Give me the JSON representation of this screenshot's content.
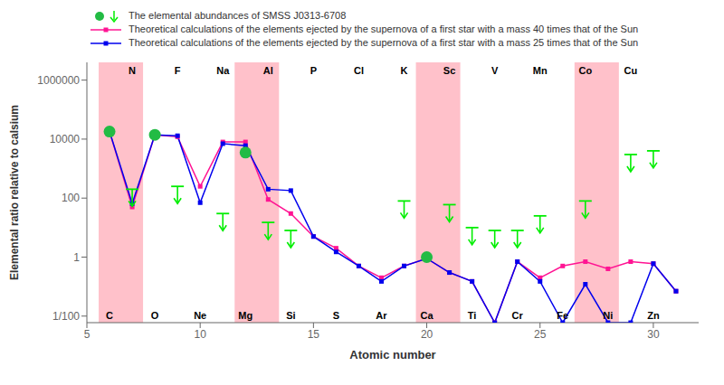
{
  "chart_data": {
    "type": "line",
    "xlabel": "Atomic number",
    "ylabel": "Elemental ratio relative to calsium",
    "log": "y",
    "xlim": [
      5,
      32
    ],
    "xticks": [
      5,
      10,
      15,
      20,
      25,
      30
    ],
    "ylim": [
      0.006,
      4000000
    ],
    "yticks": [
      {
        "value": 0.01,
        "label": "1/100"
      },
      1,
      100,
      10000,
      1000000
    ],
    "series": [
      {
        "name": "The elemental abundances of  SMSS J0313-6708",
        "type": "scatter",
        "marker": "circle",
        "color": "#22BB44",
        "x": [
          6,
          8,
          12,
          20
        ],
        "values": [
          18000,
          14000,
          3500,
          1.0
        ]
      },
      {
        "name": "Theoretical calculations of the elements ejected by the supernova of a first star with a mass 40 times that of the Sun",
        "type": "line",
        "marker": "square",
        "color": "#FF1493",
        "x": [
          6,
          7,
          8,
          9,
          10,
          11,
          12,
          13,
          14,
          15,
          16,
          17,
          18,
          19,
          20,
          21,
          22,
          23,
          24,
          25,
          26,
          27,
          28,
          29,
          30,
          31
        ],
        "values": [
          18000,
          50,
          14000,
          12000,
          250,
          8000,
          8000,
          90,
          30,
          5,
          2,
          0.5,
          0.2,
          0.5,
          0.9,
          0.3,
          0.15,
          0.006,
          0.7,
          0.2,
          0.5,
          0.7,
          0.4,
          0.7,
          0.6,
          0.07
        ]
      },
      {
        "name": "Theoretical calculations of the elements ejected by the supernova of a first star with a mass 25 times that of the Sun",
        "type": "line",
        "marker": "square",
        "color": "#0000EE",
        "x": [
          6,
          7,
          8,
          9,
          10,
          11,
          12,
          13,
          14,
          15,
          16,
          17,
          18,
          19,
          20,
          21,
          22,
          23,
          24,
          25,
          26,
          27,
          28,
          29,
          30,
          31
        ],
        "values": [
          18000,
          65,
          14000,
          13000,
          70,
          7000,
          6000,
          200,
          180,
          5,
          1.5,
          0.5,
          0.15,
          0.5,
          0.9,
          0.3,
          0.15,
          0.006,
          0.7,
          0.15,
          0.006,
          0.12,
          0.006,
          0.006,
          0.6,
          0.07
        ]
      }
    ],
    "upper_limits": {
      "color": "#00EE00",
      "x": [
        7,
        9,
        11,
        13,
        14,
        19,
        21,
        22,
        23,
        24,
        25,
        27,
        29,
        30
      ],
      "values": [
        200,
        250,
        30,
        15,
        8,
        80,
        60,
        10,
        8,
        8,
        25,
        80,
        3000,
        4000
      ]
    },
    "bands": {
      "color": "#FFB6C1",
      "ranges": [
        [
          6,
          7
        ],
        [
          12,
          13
        ],
        [
          20,
          21
        ],
        [
          27,
          28
        ]
      ]
    },
    "element_labels_bottom": [
      {
        "x": 6,
        "text": "C"
      },
      {
        "x": 8,
        "text": "O"
      },
      {
        "x": 10,
        "text": "Ne"
      },
      {
        "x": 12,
        "text": "Mg"
      },
      {
        "x": 14,
        "text": "Si"
      },
      {
        "x": 16,
        "text": "S"
      },
      {
        "x": 18,
        "text": "Ar"
      },
      {
        "x": 20,
        "text": "Ca"
      },
      {
        "x": 22,
        "text": "Ti"
      },
      {
        "x": 24,
        "text": "Cr"
      },
      {
        "x": 26,
        "text": "Fe"
      },
      {
        "x": 28,
        "text": "Ni"
      },
      {
        "x": 30,
        "text": "Zn"
      }
    ],
    "element_labels_top": [
      {
        "x": 7,
        "text": "N"
      },
      {
        "x": 9,
        "text": "F"
      },
      {
        "x": 11,
        "text": "Na"
      },
      {
        "x": 13,
        "text": "Al"
      },
      {
        "x": 15,
        "text": "P"
      },
      {
        "x": 17,
        "text": "Cl"
      },
      {
        "x": 19,
        "text": "K"
      },
      {
        "x": 21,
        "text": "Sc"
      },
      {
        "x": 23,
        "text": "V"
      },
      {
        "x": 25,
        "text": "Mn"
      },
      {
        "x": 27,
        "text": "Co"
      },
      {
        "x": 29,
        "text": "Cu"
      }
    ]
  }
}
